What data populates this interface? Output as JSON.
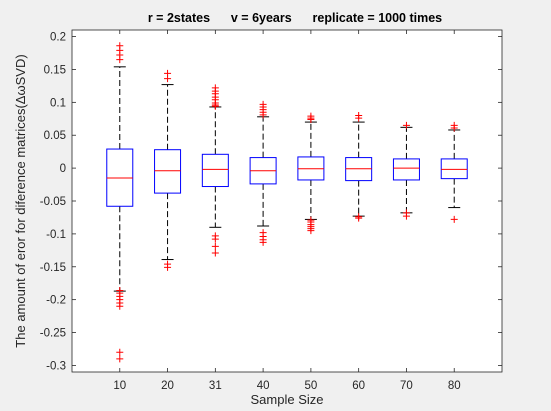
{
  "chart_data": {
    "type": "boxplot",
    "title": "r = 2states      v = 6years      replicate = 1000 times",
    "xlabel": "Sample Size",
    "ylabel": "The amount of eror for diference matrices(ΔωSVD)",
    "ylim": [
      -0.31,
      0.21
    ],
    "yticks": [
      -0.3,
      -0.25,
      -0.2,
      -0.15,
      -0.1,
      -0.05,
      0,
      0.05,
      0.1,
      0.15,
      0.2
    ],
    "ytick_labels": [
      "-0.3",
      "-0.25",
      "-0.2",
      "-0.15",
      "-0.1",
      "-0.05",
      "0",
      "0.05",
      "0.1",
      "0.15",
      "0.2"
    ],
    "categories": [
      "10",
      "20",
      "31",
      "40",
      "50",
      "60",
      "70",
      "80"
    ],
    "grid": false,
    "colors": {
      "box": "#0000ff",
      "median": "#ff0000",
      "whisker": "#000000",
      "outlier": "#ff0000",
      "axes_bg": "#ffffff",
      "figure_bg": "#f0f0f0"
    },
    "boxes": [
      {
        "category": "10",
        "q1": -0.058,
        "median": -0.015,
        "q3": 0.029,
        "whisker_low": -0.187,
        "whisker_high": 0.154,
        "outliers": [
          0.186,
          0.179,
          0.172,
          0.165,
          -0.186,
          -0.19,
          -0.195,
          -0.2,
          -0.205,
          -0.21,
          -0.28,
          -0.29
        ]
      },
      {
        "category": "20",
        "q1": -0.038,
        "median": -0.004,
        "q3": 0.028,
        "whisker_low": -0.139,
        "whisker_high": 0.127,
        "outliers": [
          0.144,
          0.136,
          -0.146,
          -0.151
        ]
      },
      {
        "category": "31",
        "q1": -0.028,
        "median": -0.002,
        "q3": 0.021,
        "whisker_low": -0.09,
        "whisker_high": 0.093,
        "outliers": [
          0.122,
          0.117,
          0.113,
          0.108,
          0.104,
          0.099,
          0.096,
          0.094,
          -0.103,
          -0.108,
          -0.119,
          -0.129
        ]
      },
      {
        "category": "40",
        "q1": -0.024,
        "median": -0.004,
        "q3": 0.016,
        "whisker_low": -0.088,
        "whisker_high": 0.078,
        "outliers": [
          0.097,
          0.093,
          0.089,
          0.085,
          0.081,
          -0.098,
          -0.104,
          -0.109,
          -0.113
        ]
      },
      {
        "category": "50",
        "q1": -0.018,
        "median": -0.001,
        "q3": 0.017,
        "whisker_low": -0.078,
        "whisker_high": 0.07,
        "outliers": [
          0.079,
          0.076,
          0.074,
          -0.079,
          -0.082,
          -0.086,
          -0.089,
          -0.092,
          -0.095
        ]
      },
      {
        "category": "60",
        "q1": -0.019,
        "median": -0.001,
        "q3": 0.016,
        "whisker_low": -0.073,
        "whisker_high": 0.07,
        "outliers": [
          0.08,
          0.076,
          -0.074,
          -0.076
        ]
      },
      {
        "category": "70",
        "q1": -0.018,
        "median": 0.0,
        "q3": 0.014,
        "whisker_low": -0.068,
        "whisker_high": 0.062,
        "outliers": [
          0.065,
          -0.068,
          -0.073
        ]
      },
      {
        "category": "80",
        "q1": -0.016,
        "median": -0.002,
        "q3": 0.014,
        "whisker_low": -0.06,
        "whisker_high": 0.058,
        "outliers": [
          0.065,
          0.061,
          -0.078
        ]
      }
    ]
  }
}
